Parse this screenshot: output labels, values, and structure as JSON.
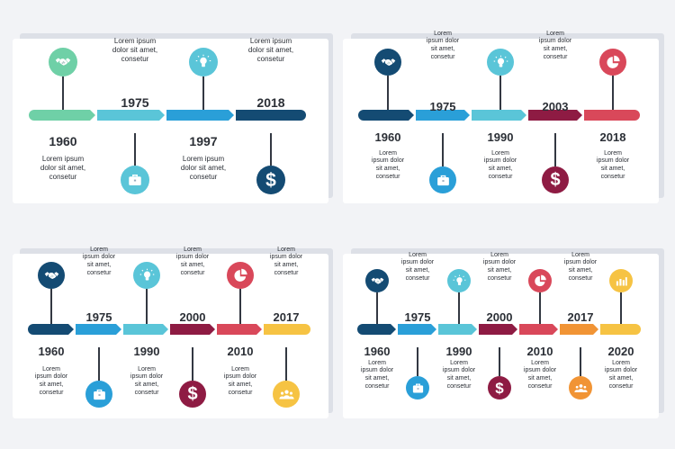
{
  "colors": {
    "navy": "#144b73",
    "blue": "#2a9fd8",
    "teal": "#5ac5d8",
    "green": "#6fd0a7",
    "maroon": "#8e1b43",
    "red": "#d9485a",
    "yellow": "#f6c343",
    "orange": "#f19435",
    "dark": "#2b2f36"
  },
  "panels": [
    {
      "id": "panel-4-stage",
      "years": [
        "1960",
        "1975",
        "1997",
        "2018"
      ],
      "labels": [
        [
          "Lorem ipsum",
          "dolor sit amet,",
          "consetur"
        ],
        [
          "Lorem ipsum",
          "dolor sit amet,",
          "consetur"
        ],
        [
          "Lorem ipsum",
          "dolor sit amet,",
          "consetur"
        ],
        [
          "Lorem ipsum",
          "dolor sit amet,",
          "consetur"
        ]
      ],
      "icons": [
        "handshake-icon",
        "briefcase-icon",
        "lightbulb-icon",
        "dollar-icon"
      ]
    },
    {
      "id": "panel-5-stage",
      "years": [
        "1960",
        "1975",
        "1990",
        "2003",
        "2018"
      ],
      "labels": [
        [
          "Lorem",
          "ipsum dolor",
          "sit amet,",
          "consetur"
        ],
        [
          "Lorem",
          "ipsum dolor",
          "sit amet,",
          "consetur"
        ],
        [
          "Lorem",
          "ipsum dolor",
          "sit amet,",
          "consetur"
        ],
        [
          "Lorem",
          "ipsum dolor",
          "sit amet,",
          "consetur"
        ],
        [
          "Lorem",
          "ipsum dolor",
          "sit amet,",
          "consetur"
        ]
      ],
      "icons": [
        "handshake-icon",
        "briefcase-icon",
        "lightbulb-icon",
        "dollar-icon",
        "pie-chart-icon"
      ]
    },
    {
      "id": "panel-6-stage",
      "years": [
        "1960",
        "1975",
        "1990",
        "2000",
        "2010",
        "2017"
      ],
      "labels": [
        [
          "Lorem",
          "ipsum dolor",
          "sit amet,",
          "consetur"
        ],
        [
          "Lorem",
          "ipsum dolor",
          "sit amet,",
          "consetur"
        ],
        [
          "Lorem",
          "ipsum dolor",
          "sit amet,",
          "consetur"
        ],
        [
          "Lorem",
          "ipsum dolor",
          "sit amet,",
          "consetur"
        ],
        [
          "Lorem",
          "ipsum dolor",
          "sit amet,",
          "consetur"
        ],
        [
          "Lorem",
          "ipsum dolor",
          "sit amet,",
          "consetur"
        ]
      ],
      "icons": [
        "handshake-icon",
        "briefcase-icon",
        "lightbulb-icon",
        "dollar-icon",
        "pie-chart-icon",
        "team-icon"
      ]
    },
    {
      "id": "panel-7-stage",
      "years": [
        "1960",
        "1975",
        "1990",
        "2000",
        "2010",
        "2017",
        "2020"
      ],
      "labels": [
        [
          "Lorem",
          "ipsum dolor",
          "sit amet,",
          "consetur"
        ],
        [
          "Lorem",
          "ipsum dolor",
          "sit amet,",
          "consetur"
        ],
        [
          "Lorem",
          "ipsum dolor",
          "sit amet,",
          "consetur"
        ],
        [
          "Lorem",
          "ipsum dolor",
          "sit amet,",
          "consetur"
        ],
        [
          "Lorem",
          "ipsum dolor",
          "sit amet,",
          "consetur"
        ],
        [
          "Lorem",
          "ipsum dolor",
          "sit amet,",
          "consetur"
        ],
        [
          "Lorem",
          "ipsum dolor",
          "sit amet,",
          "consetur"
        ]
      ],
      "icons": [
        "handshake-icon",
        "briefcase-icon",
        "lightbulb-icon",
        "dollar-icon",
        "pie-chart-icon",
        "team-icon",
        "bar-chart-icon"
      ]
    }
  ]
}
